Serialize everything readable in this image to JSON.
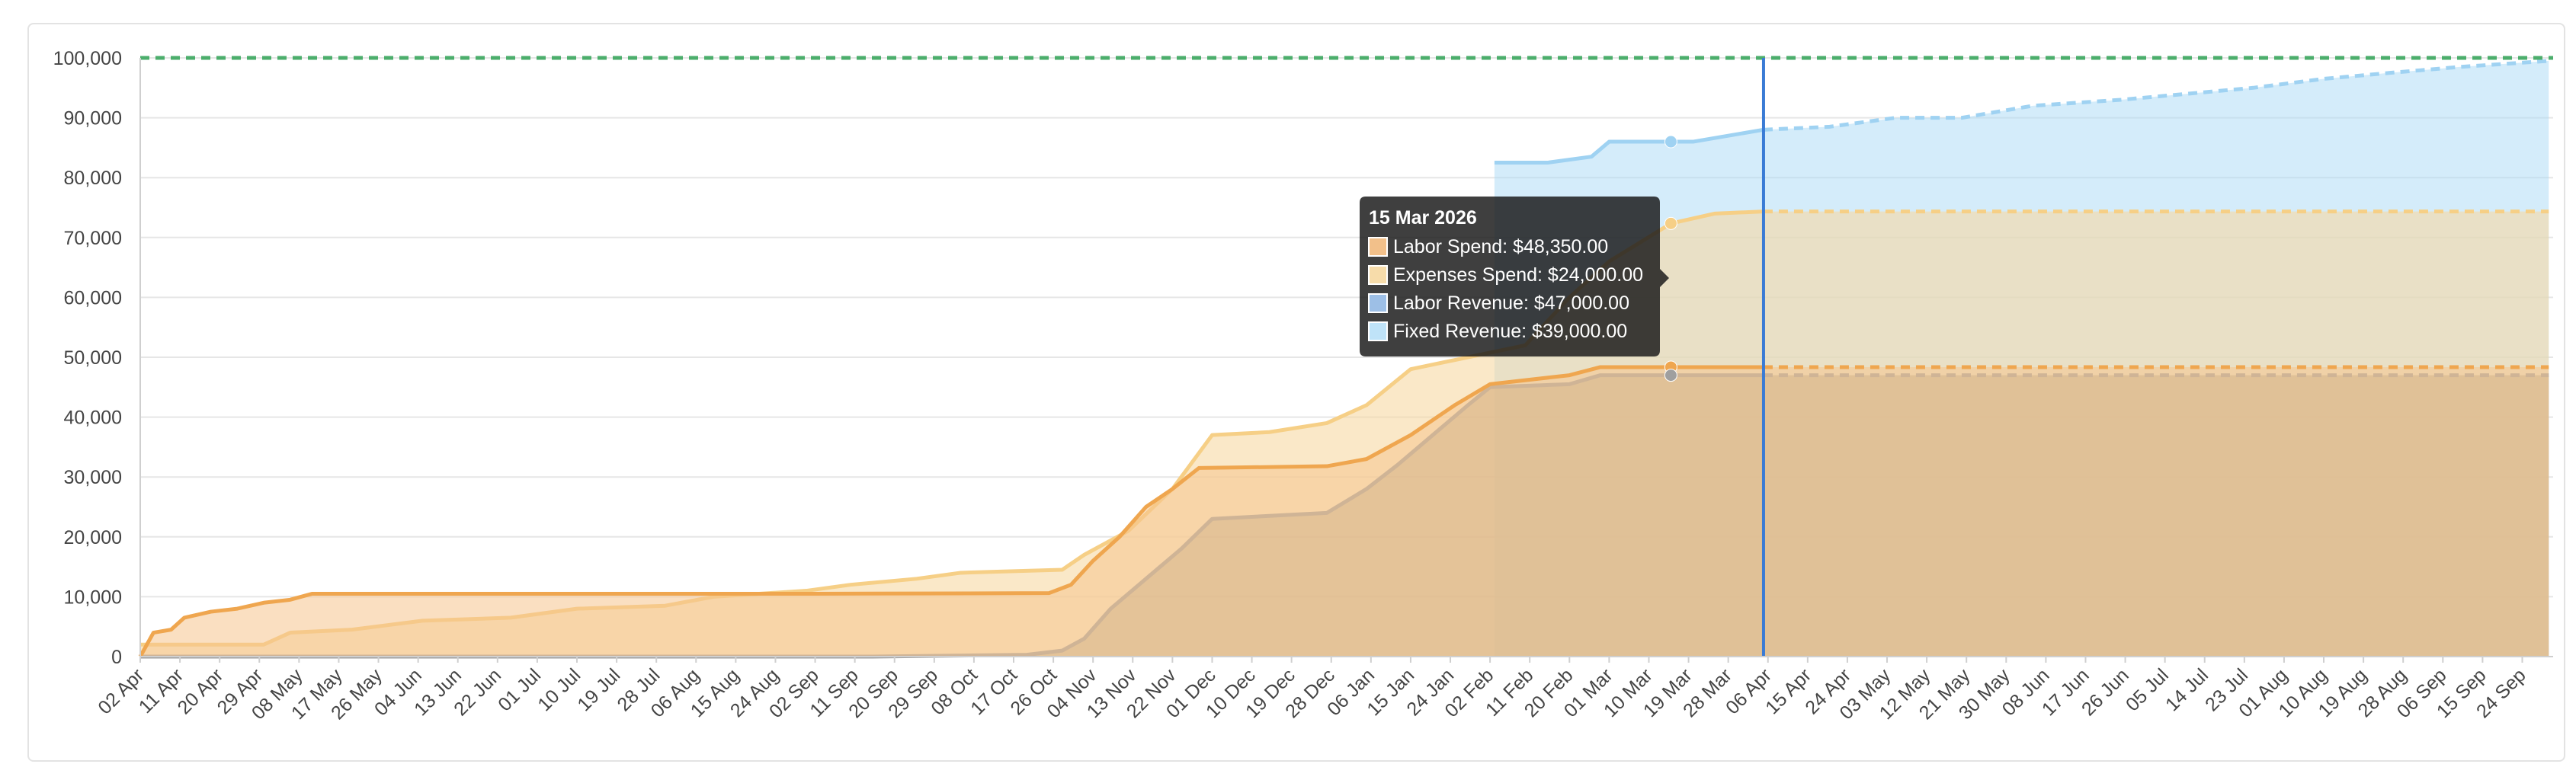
{
  "chart_data": {
    "type": "area",
    "title": "",
    "xlabel": "",
    "ylabel": "",
    "ylim": [
      0,
      100000
    ],
    "yticks": [
      0,
      10000,
      20000,
      30000,
      40000,
      50000,
      60000,
      70000,
      80000,
      90000,
      100000
    ],
    "ytick_labels": [
      "0",
      "10,000",
      "20,000",
      "30,000",
      "40,000",
      "50,000",
      "60,000",
      "70,000",
      "80,000",
      "90,000",
      "100,000"
    ],
    "x_start": "2025-04-02",
    "x_end": "2026-10-01",
    "xtick_labels": [
      "02 Apr",
      "11 Apr",
      "20 Apr",
      "29 Apr",
      "08 May",
      "17 May",
      "26 May",
      "04 Jun",
      "13 Jun",
      "22 Jun",
      "01 Jul",
      "10 Jul",
      "19 Jul",
      "28 Jul",
      "06 Aug",
      "15 Aug",
      "24 Aug",
      "02 Sep",
      "11 Sep",
      "20 Sep",
      "29 Sep",
      "08 Oct",
      "17 Oct",
      "26 Oct",
      "04 Nov",
      "13 Nov",
      "22 Nov",
      "01 Dec",
      "10 Dec",
      "19 Dec",
      "28 Dec",
      "06 Jan",
      "15 Jan",
      "24 Jan",
      "02 Feb",
      "11 Feb",
      "20 Feb",
      "01 Mar",
      "10 Mar",
      "19 Mar",
      "28 Mar",
      "06 Apr",
      "15 Apr",
      "24 Apr",
      "03 May",
      "12 May",
      "21 May",
      "30 May",
      "08 Jun",
      "17 Jun",
      "26 Jun",
      "05 Jul",
      "14 Jul",
      "23 Jul",
      "01 Aug",
      "10 Aug",
      "19 Aug",
      "28 Aug",
      "06 Sep",
      "15 Sep",
      "24 Sep"
    ],
    "grid": true,
    "reference_line": {
      "value": 100000,
      "color": "#4cae6c",
      "style": "dashed"
    },
    "current_date": "2026-04-05",
    "series": [
      {
        "name": "Labor Spend",
        "color": "#efa64f",
        "fill": "#f5c48e",
        "fill_opacity": 0.55,
        "points": [
          [
            "2025-04-02",
            0
          ],
          [
            "2025-04-05",
            4000
          ],
          [
            "2025-04-09",
            4500
          ],
          [
            "2025-04-12",
            6500
          ],
          [
            "2025-04-18",
            7500
          ],
          [
            "2025-04-24",
            8000
          ],
          [
            "2025-04-30",
            9000
          ],
          [
            "2025-05-06",
            9500
          ],
          [
            "2025-05-11",
            10500
          ],
          [
            "2025-09-01",
            10500
          ],
          [
            "2025-10-25",
            10600
          ],
          [
            "2025-10-30",
            12000
          ],
          [
            "2025-11-04",
            16000
          ],
          [
            "2025-11-10",
            20000
          ],
          [
            "2025-11-16",
            25000
          ],
          [
            "2025-11-22",
            28000
          ],
          [
            "2025-11-28",
            31500
          ],
          [
            "2025-12-27",
            31800
          ],
          [
            "2026-01-05",
            33000
          ],
          [
            "2026-01-15",
            37000
          ],
          [
            "2026-01-25",
            42000
          ],
          [
            "2026-02-02",
            45500
          ],
          [
            "2026-02-20",
            47000
          ],
          [
            "2026-02-27",
            48350
          ],
          [
            "2026-04-05",
            48350
          ]
        ],
        "forecast": [
          [
            "2026-04-05",
            48350
          ],
          [
            "2026-09-30",
            48350
          ]
        ]
      },
      {
        "name": "Expenses Spend",
        "color": "#f6cf86",
        "fill": "#f6d9a4",
        "fill_opacity": 0.6,
        "points": [
          [
            "2025-04-02",
            2000
          ],
          [
            "2025-04-05",
            2000
          ],
          [
            "2025-04-30",
            2000
          ],
          [
            "2025-05-06",
            4000
          ],
          [
            "2025-05-20",
            4500
          ],
          [
            "2025-06-05",
            6000
          ],
          [
            "2025-06-25",
            6500
          ],
          [
            "2025-07-10",
            8000
          ],
          [
            "2025-07-30",
            8500
          ],
          [
            "2025-08-10",
            10000
          ],
          [
            "2025-08-31",
            11000
          ],
          [
            "2025-09-10",
            12000
          ],
          [
            "2025-09-25",
            13000
          ],
          [
            "2025-10-05",
            14000
          ],
          [
            "2025-10-28",
            14500
          ],
          [
            "2025-11-02",
            17000
          ],
          [
            "2025-11-12",
            21000
          ],
          [
            "2025-11-22",
            28000
          ],
          [
            "2025-12-01",
            37000
          ],
          [
            "2025-12-14",
            37500
          ],
          [
            "2025-12-27",
            39000
          ],
          [
            "2026-01-05",
            42000
          ],
          [
            "2026-01-15",
            48000
          ],
          [
            "2026-01-28",
            50000
          ],
          [
            "2026-02-10",
            52000
          ],
          [
            "2026-02-20",
            60000
          ],
          [
            "2026-03-01",
            66000
          ],
          [
            "2026-03-15",
            72350
          ],
          [
            "2026-03-25",
            74000
          ],
          [
            "2026-04-05",
            74350
          ]
        ],
        "forecast": [
          [
            "2026-04-05",
            74350
          ],
          [
            "2026-09-30",
            74350
          ]
        ]
      },
      {
        "name": "Labor Revenue",
        "color": "#9f9f9f",
        "fill": "#aa9e86",
        "fill_opacity": 0.55,
        "points": [
          [
            "2025-04-02",
            0
          ],
          [
            "2025-09-15",
            0
          ],
          [
            "2025-10-20",
            300
          ],
          [
            "2025-10-28",
            1000
          ],
          [
            "2025-11-02",
            3000
          ],
          [
            "2025-11-08",
            8000
          ],
          [
            "2025-11-16",
            13000
          ],
          [
            "2025-11-24",
            18000
          ],
          [
            "2025-12-01",
            23000
          ],
          [
            "2025-12-27",
            24000
          ],
          [
            "2026-01-05",
            28000
          ],
          [
            "2026-01-12",
            32000
          ],
          [
            "2026-01-20",
            37000
          ],
          [
            "2026-01-28",
            42000
          ],
          [
            "2026-02-02",
            45000
          ],
          [
            "2026-02-20",
            45500
          ],
          [
            "2026-02-27",
            47000
          ],
          [
            "2026-04-05",
            47000
          ]
        ],
        "forecast": [
          [
            "2026-04-05",
            47000
          ],
          [
            "2026-09-30",
            47000
          ]
        ]
      },
      {
        "name": "Fixed Revenue",
        "color": "#9fd2f2",
        "fill": "#a9daf6",
        "fill_opacity": 0.5,
        "points": [
          [
            "2026-02-03",
            82500
          ],
          [
            "2026-02-15",
            82500
          ],
          [
            "2026-02-25",
            83500
          ],
          [
            "2026-03-01",
            86000
          ],
          [
            "2026-03-20",
            86000
          ],
          [
            "2026-04-05",
            88000
          ]
        ],
        "forecast": [
          [
            "2026-04-05",
            88000
          ],
          [
            "2026-04-20",
            88500
          ],
          [
            "2026-05-05",
            90000
          ],
          [
            "2026-05-20",
            90000
          ],
          [
            "2026-06-05",
            92000
          ],
          [
            "2026-06-25",
            93000
          ],
          [
            "2026-07-10",
            94000
          ],
          [
            "2026-07-25",
            95000
          ],
          [
            "2026-08-10",
            96500
          ],
          [
            "2026-08-25",
            97500
          ],
          [
            "2026-09-10",
            98500
          ],
          [
            "2026-09-30",
            99500
          ]
        ]
      }
    ],
    "hover_markers": [
      {
        "date": "2026-03-15",
        "series": "Fixed Revenue",
        "value": 86000
      },
      {
        "date": "2026-03-15",
        "series": "Expenses Spend",
        "value": 72350
      },
      {
        "date": "2026-03-15",
        "series": "Labor Spend",
        "value": 48350
      },
      {
        "date": "2026-03-15",
        "series": "Labor Revenue",
        "value": 47000
      }
    ],
    "tooltip": {
      "title": "15 Mar 2026",
      "items": [
        {
          "label": "Labor Spend: $48,350.00",
          "swatch": "#f2c08a"
        },
        {
          "label": "Expenses Spend: $24,000.00",
          "swatch": "#f7dcaa"
        },
        {
          "label": "Labor Revenue: $47,000.00",
          "swatch": "#9dbfe6"
        },
        {
          "label": "Fixed Revenue: $39,000.00",
          "swatch": "#bfe3f8"
        }
      ]
    }
  }
}
